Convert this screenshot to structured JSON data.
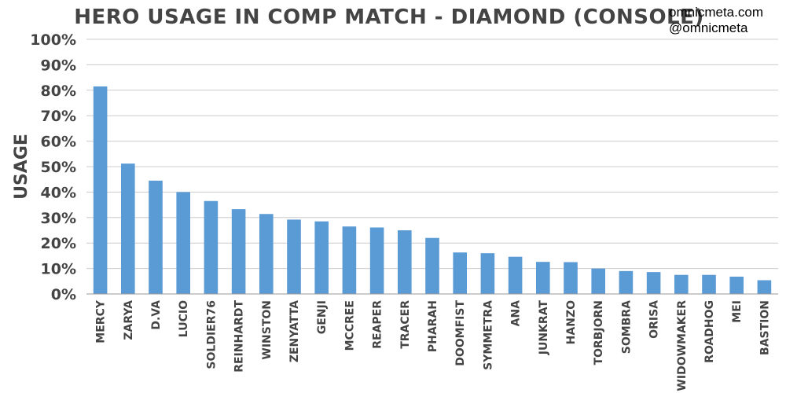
{
  "credits": {
    "site": "omnicmeta.com",
    "handle": "@omnicmeta"
  },
  "chart_data": {
    "type": "bar",
    "title": "HERO USAGE IN COMP MATCH - DIAMOND (CONSOLE)",
    "xlabel": "",
    "ylabel": "USAGE",
    "ylim": [
      0,
      100
    ],
    "yticks": [
      "0%",
      "10%",
      "20%",
      "30%",
      "40%",
      "50%",
      "60%",
      "70%",
      "80%",
      "90%",
      "100%"
    ],
    "grid": true,
    "bar_color": "#5b9bd5",
    "categories": [
      "MERCY",
      "ZARYA",
      "D.VA",
      "LUCIO",
      "SOLDIER76",
      "REINHARDT",
      "WINSTON",
      "ZENYATTA",
      "GENJI",
      "MCCREE",
      "REAPER",
      "TRACER",
      "PHARAH",
      "DOOMFIST",
      "SYMMETRA",
      "ANA",
      "JUNKRAT",
      "HANZO",
      "TORBJORN",
      "SOMBRA",
      "ORISA",
      "WIDOWMAKER",
      "ROADHOG",
      "MEI",
      "BASTION"
    ],
    "values": [
      81.5,
      51.2,
      44.5,
      40,
      36.5,
      33.3,
      31.4,
      29.2,
      28.5,
      26.5,
      26.1,
      25,
      22,
      16.3,
      16,
      14.6,
      12.6,
      12.5,
      10,
      9,
      8.6,
      7.5,
      7.5,
      6.8,
      5.4
    ]
  }
}
